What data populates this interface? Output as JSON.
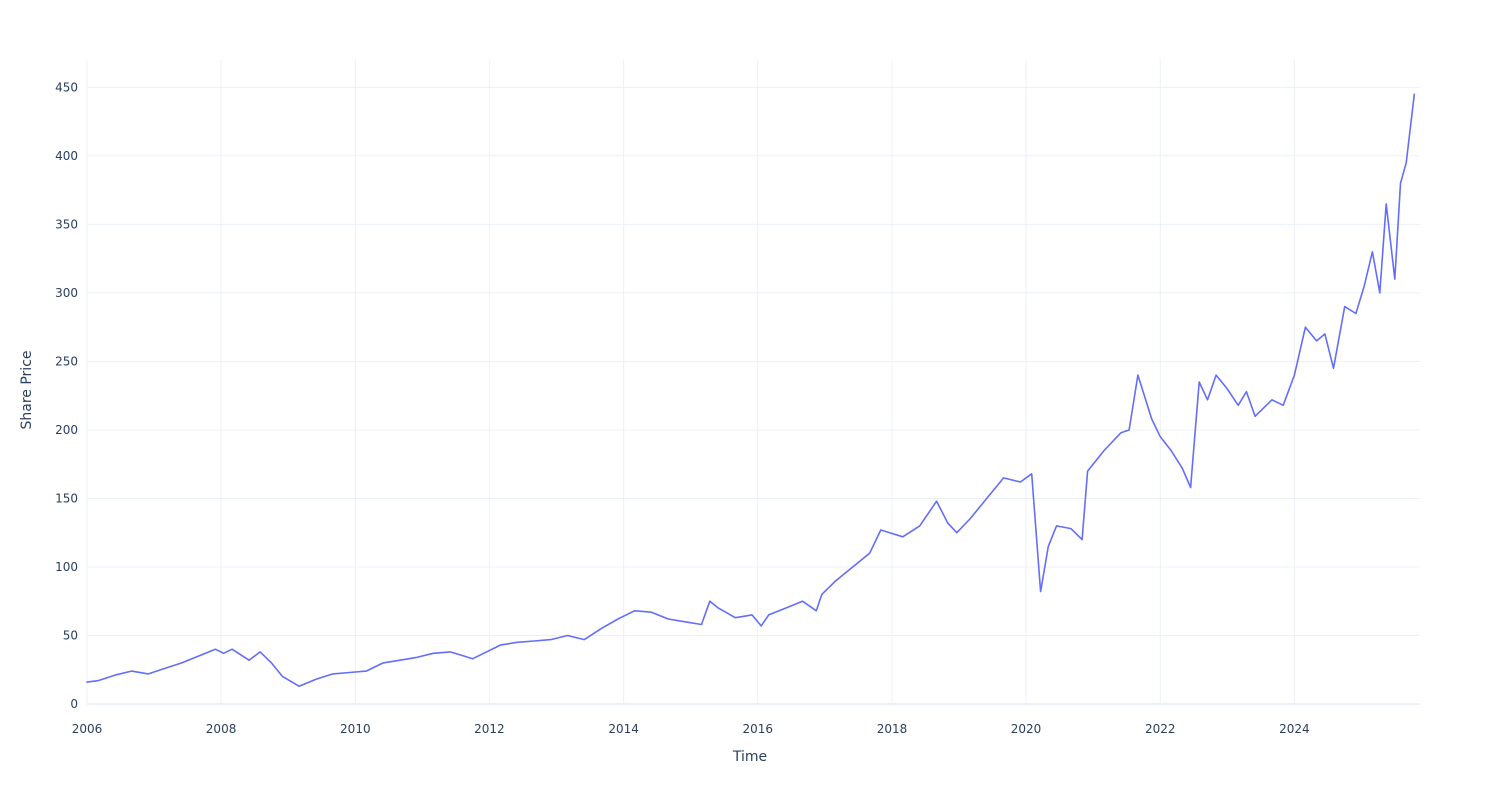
{
  "chart_data": {
    "type": "line",
    "title": "",
    "xlabel": "Time",
    "ylabel": "Share Price",
    "x_ticks": [
      "2006",
      "2008",
      "2010",
      "2012",
      "2014",
      "2016",
      "2018",
      "2020",
      "2022",
      "2024"
    ],
    "y_ticks": [
      0,
      50,
      100,
      150,
      200,
      250,
      300,
      350,
      400,
      450
    ],
    "xlim": [
      "2006-01-01",
      "2025-11-15"
    ],
    "ylim": [
      0,
      470
    ],
    "grid": true,
    "legend": "none",
    "series": [
      {
        "color": "#636efa",
        "x": [
          "2006-01-01",
          "2006-03-01",
          "2006-06-01",
          "2006-09-01",
          "2006-12-01",
          "2007-03-01",
          "2007-06-01",
          "2007-09-01",
          "2007-12-01",
          "2008-01-15",
          "2008-03-01",
          "2008-06-01",
          "2008-08-01",
          "2008-10-01",
          "2008-12-01",
          "2009-03-01",
          "2009-06-01",
          "2009-09-01",
          "2009-12-01",
          "2010-03-01",
          "2010-06-01",
          "2010-09-01",
          "2010-12-01",
          "2011-03-01",
          "2011-06-01",
          "2011-08-15",
          "2011-10-01",
          "2011-12-01",
          "2012-03-01",
          "2012-06-01",
          "2012-09-01",
          "2012-12-01",
          "2013-03-01",
          "2013-06-01",
          "2013-09-01",
          "2013-12-01",
          "2014-03-01",
          "2014-06-01",
          "2014-09-01",
          "2014-12-01",
          "2015-03-01",
          "2015-04-15",
          "2015-06-01",
          "2015-09-01",
          "2015-12-01",
          "2016-01-20",
          "2016-03-01",
          "2016-06-01",
          "2016-09-01",
          "2016-11-15",
          "2016-12-15",
          "2017-03-01",
          "2017-06-01",
          "2017-09-01",
          "2017-11-01",
          "2018-03-01",
          "2018-06-01",
          "2018-09-01",
          "2018-11-01",
          "2018-12-20",
          "2019-03-01",
          "2019-06-01",
          "2019-09-01",
          "2019-12-01",
          "2020-02-01",
          "2020-03-20",
          "2020-05-01",
          "2020-06-15",
          "2020-09-01",
          "2020-11-01",
          "2020-12-01",
          "2021-03-01",
          "2021-06-01",
          "2021-07-15",
          "2021-09-01",
          "2021-11-15",
          "2022-01-01",
          "2022-03-01",
          "2022-05-01",
          "2022-06-15",
          "2022-08-01",
          "2022-09-15",
          "2022-11-01",
          "2023-01-01",
          "2023-03-01",
          "2023-04-15",
          "2023-06-01",
          "2023-09-01",
          "2023-11-01",
          "2024-01-01",
          "2024-03-01",
          "2024-05-01",
          "2024-06-15",
          "2024-08-01",
          "2024-10-01",
          "2024-12-01",
          "2025-01-15",
          "2025-03-01",
          "2025-04-10",
          "2025-05-15",
          "2025-07-01",
          "2025-08-01",
          "2025-09-01",
          "2025-10-15"
        ],
        "y": [
          16,
          17,
          21,
          24,
          22,
          26,
          30,
          35,
          40,
          37,
          40,
          32,
          38,
          30,
          20,
          13,
          18,
          22,
          23,
          24,
          30,
          32,
          34,
          37,
          38,
          35,
          33,
          37,
          43,
          45,
          46,
          47,
          50,
          47,
          55,
          62,
          68,
          67,
          62,
          60,
          58,
          75,
          70,
          63,
          65,
          57,
          65,
          70,
          75,
          68,
          80,
          90,
          100,
          110,
          127,
          122,
          130,
          148,
          132,
          125,
          135,
          150,
          165,
          162,
          168,
          82,
          115,
          130,
          128,
          120,
          170,
          185,
          198,
          200,
          240,
          208,
          195,
          185,
          172,
          158,
          235,
          222,
          240,
          230,
          218,
          228,
          210,
          222,
          218,
          240,
          275,
          265,
          270,
          245,
          290,
          285,
          305,
          330,
          300,
          365,
          310,
          380,
          395,
          445
        ]
      }
    ]
  }
}
